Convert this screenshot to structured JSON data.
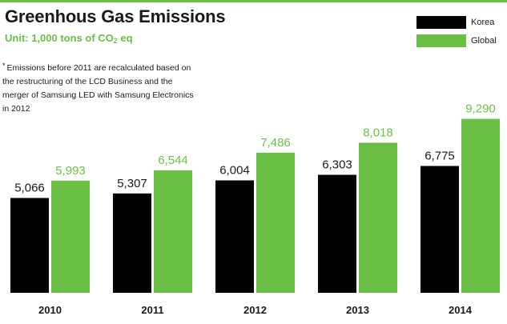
{
  "header": {
    "title": "Greenhous Gas Emissions",
    "unit_prefix": "Unit: 1,000 tons of CO",
    "unit_sub": "2",
    "unit_suffix": " eq"
  },
  "footnote": {
    "star": "*",
    "text": "Emissions before 2011 are recalculated based on the restructuring of the LCD Business and the merger of Samsung LED with Samsung Electronics in 2012"
  },
  "colors": {
    "korea": "#000000",
    "global": "#6cbf45",
    "rule": "#6cbf45",
    "text": "#1a1a1a"
  },
  "chart_data": {
    "type": "bar",
    "title": "Greenhous Gas Emissions",
    "xlabel": "",
    "ylabel": "",
    "grid": false,
    "legend": "top-right",
    "ylim": [
      0,
      10000
    ],
    "categories": [
      "2010",
      "2011",
      "2012",
      "2013",
      "2014"
    ],
    "highlight_category": "2014",
    "series": [
      {
        "name": "Korea",
        "values": [
          5066,
          5307,
          6004,
          6303,
          6775
        ],
        "labels": [
          "5,066",
          "5,307",
          "6,004",
          "6,303",
          "6,775"
        ]
      },
      {
        "name": "Global",
        "values": [
          5993,
          6544,
          7486,
          8018,
          9290
        ],
        "labels": [
          "5,993",
          "6,544",
          "7,486",
          "8,018",
          "9,290"
        ]
      }
    ]
  }
}
